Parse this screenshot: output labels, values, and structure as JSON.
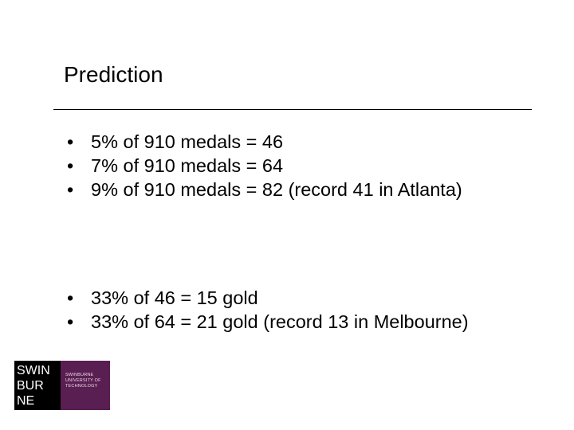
{
  "slide": {
    "title": "Prediction",
    "bullet_groups": [
      {
        "items": [
          "5% of 910 medals = 46",
          "7% of 910 medals = 64",
          "9% of 910 medals = 82  (record 41 in Atlanta)"
        ]
      },
      {
        "items": [
          "33% of 46 = 15 gold",
          "33% of 64 = 21 gold (record 13 in Melbourne)"
        ]
      }
    ]
  },
  "logo": {
    "mark_lines": [
      "SWIN",
      "BUR",
      "NE"
    ],
    "text_lines": [
      "SWINBURNE",
      "UNIVERSITY OF",
      "TECHNOLOGY"
    ],
    "colors": {
      "mark_background": "#000000",
      "text_background": "#5a1f52"
    }
  }
}
